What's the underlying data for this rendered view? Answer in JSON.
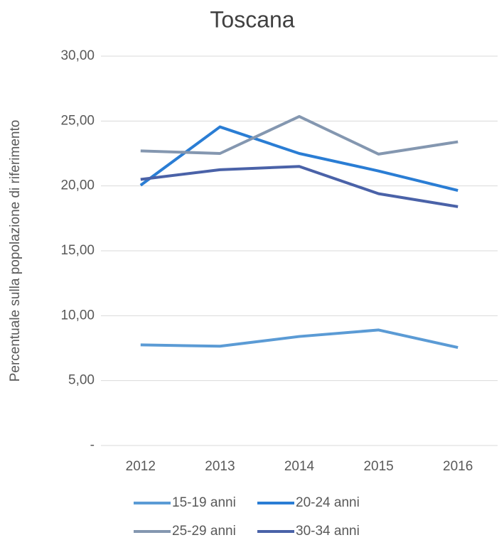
{
  "chart_data": {
    "type": "line",
    "title": "Toscana",
    "y_label": "Percentuale sulla popolazione di riferimento",
    "categories": [
      "2012",
      "2013",
      "2014",
      "2015",
      "2016"
    ],
    "series": [
      {
        "name": "15-19 anni",
        "color": "#5b9bd5",
        "values": [
          7.75,
          7.65,
          8.4,
          8.9,
          7.55
        ]
      },
      {
        "name": "20-24 anni",
        "color": "#2a7dd4",
        "values": [
          20.05,
          24.55,
          22.5,
          21.15,
          19.65
        ]
      },
      {
        "name": "25-29 anni",
        "color": "#8497b0",
        "values": [
          22.7,
          22.5,
          25.35,
          22.45,
          23.4
        ]
      },
      {
        "name": "30-34 anni",
        "color": "#4a62a8",
        "values": [
          20.5,
          21.25,
          21.5,
          19.4,
          18.4
        ]
      }
    ],
    "ylim": [
      0,
      30
    ],
    "yticks": [
      {
        "value": 0,
        "label": "-"
      },
      {
        "value": 5,
        "label": "5,00"
      },
      {
        "value": 10,
        "label": "10,00"
      },
      {
        "value": 15,
        "label": "15,00"
      },
      {
        "value": 20,
        "label": "20,00"
      },
      {
        "value": 25,
        "label": "25,00"
      },
      {
        "value": 30,
        "label": "30,00"
      }
    ],
    "grid": true,
    "legend": "bottom"
  }
}
